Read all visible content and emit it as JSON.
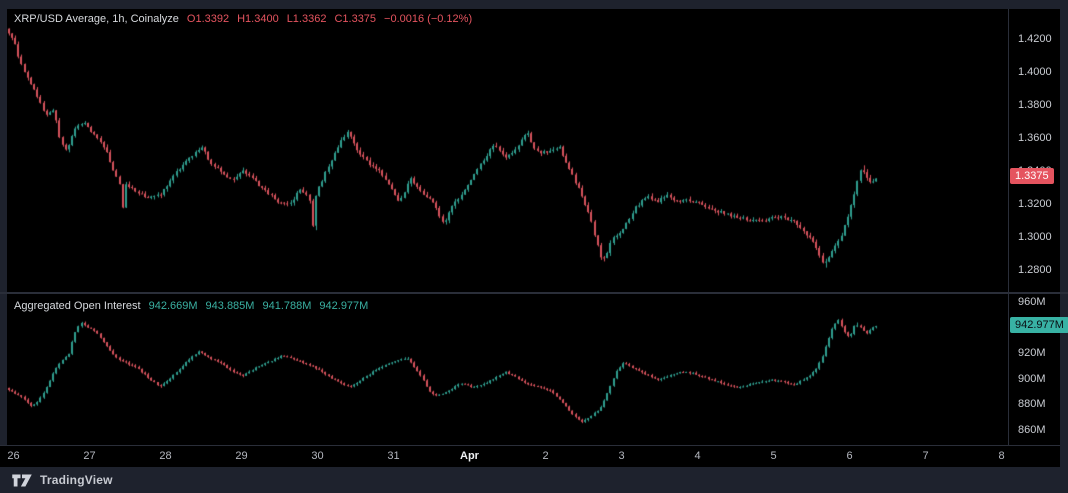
{
  "legend": {
    "title": "XRP/USD Average, 1h, Coinalyze",
    "ohlc": [
      "O1.3392",
      "H1.3400",
      "L1.3362",
      "C1.3375"
    ],
    "change": "−0.0016 (−0.12%)"
  },
  "oi_legend": {
    "title": "Aggregated Open Interest",
    "values": [
      "942.669M",
      "943.885M",
      "941.788M",
      "942.977M"
    ]
  },
  "footer": {
    "brand": "TradingView",
    "logo": "tradingview-logo"
  },
  "colors": {
    "up": "#2f9e8f",
    "down": "#d6525c",
    "chrome": "#1e222d",
    "border": "#2a2e39",
    "axis_text": "#c9ccd2",
    "time_text": "#b4b7bf",
    "badge_down": "#e5545f",
    "badge_up": "#38b2a4",
    "background": "#000000"
  },
  "chart_data": [
    {
      "type": "candlestick",
      "title": "XRP/USD Average, 1h, Coinalyze",
      "interval": "1h",
      "pane": "price",
      "ohlc_last": {
        "open": 1.3392,
        "high": 1.34,
        "low": 1.3362,
        "close": 1.3375,
        "change": -0.0016,
        "change_pct_text": "−0.12%"
      },
      "ylim": [
        1.272,
        1.434
      ],
      "x_range_days": [
        -0.08,
        11.4
      ],
      "grid": false,
      "legend_position": "top-left",
      "y_ticks": [
        {
          "text": "1.4200",
          "value": 1.42
        },
        {
          "text": "1.4000",
          "value": 1.4
        },
        {
          "text": "1.3800",
          "value": 1.38
        },
        {
          "text": "1.3600",
          "value": 1.36
        },
        {
          "text": "1.3400",
          "value": 1.34
        },
        {
          "text": "1.3200",
          "value": 1.32
        },
        {
          "text": "1.3000",
          "value": 1.3
        },
        {
          "text": "1.2800",
          "value": 1.28
        }
      ],
      "last_badge": {
        "text": "1.3375",
        "value": 1.3375,
        "direction": "down"
      },
      "x_ticks": [
        {
          "text": "26",
          "day": 0
        },
        {
          "text": "27",
          "day": 1
        },
        {
          "text": "28",
          "day": 2
        },
        {
          "text": "29",
          "day": 3
        },
        {
          "text": "30",
          "day": 4
        },
        {
          "text": "31",
          "day": 5
        },
        {
          "text": "Apr",
          "day": 6,
          "major": true
        },
        {
          "text": "2",
          "day": 7
        },
        {
          "text": "3",
          "day": 8
        },
        {
          "text": "4",
          "day": 9
        },
        {
          "text": "5",
          "day": 10
        },
        {
          "text": "6",
          "day": 11
        },
        {
          "text": "7",
          "day": 12
        },
        {
          "text": "8",
          "day": 13
        }
      ],
      "waypoints": [
        [
          -0.1,
          1.428
        ],
        [
          0.02,
          1.42
        ],
        [
          0.1,
          1.408
        ],
        [
          0.2,
          1.398
        ],
        [
          0.3,
          1.39
        ],
        [
          0.45,
          1.374
        ],
        [
          0.55,
          1.378
        ],
        [
          0.63,
          1.36
        ],
        [
          0.72,
          1.352
        ],
        [
          0.82,
          1.366
        ],
        [
          0.95,
          1.37
        ],
        [
          1.1,
          1.362
        ],
        [
          1.25,
          1.352
        ],
        [
          1.38,
          1.336
        ],
        [
          1.44,
          1.33
        ],
        [
          1.46,
          1.318
        ],
        [
          1.5,
          1.332
        ],
        [
          1.65,
          1.328
        ],
        [
          1.8,
          1.324
        ],
        [
          1.95,
          1.326
        ],
        [
          2.1,
          1.336
        ],
        [
          2.3,
          1.347
        ],
        [
          2.5,
          1.355
        ],
        [
          2.62,
          1.345
        ],
        [
          2.75,
          1.341
        ],
        [
          2.9,
          1.334
        ],
        [
          3.05,
          1.341
        ],
        [
          3.25,
          1.332
        ],
        [
          3.5,
          1.322
        ],
        [
          3.65,
          1.32
        ],
        [
          3.8,
          1.33
        ],
        [
          3.94,
          1.322
        ],
        [
          3.97,
          1.297
        ],
        [
          4.0,
          1.326
        ],
        [
          4.15,
          1.342
        ],
        [
          4.3,
          1.356
        ],
        [
          4.42,
          1.365
        ],
        [
          4.55,
          1.352
        ],
        [
          4.7,
          1.345
        ],
        [
          4.85,
          1.34
        ],
        [
          5.0,
          1.33
        ],
        [
          5.1,
          1.322
        ],
        [
          5.25,
          1.336
        ],
        [
          5.4,
          1.327
        ],
        [
          5.55,
          1.322
        ],
        [
          5.68,
          1.308
        ],
        [
          5.8,
          1.32
        ],
        [
          5.95,
          1.328
        ],
        [
          6.1,
          1.34
        ],
        [
          6.25,
          1.35
        ],
        [
          6.35,
          1.357
        ],
        [
          6.5,
          1.348
        ],
        [
          6.65,
          1.355
        ],
        [
          6.78,
          1.364
        ],
        [
          6.9,
          1.352
        ],
        [
          7.05,
          1.352
        ],
        [
          7.2,
          1.356
        ],
        [
          7.35,
          1.34
        ],
        [
          7.5,
          1.326
        ],
        [
          7.62,
          1.31
        ],
        [
          7.73,
          1.291
        ],
        [
          7.78,
          1.286
        ],
        [
          7.9,
          1.299
        ],
        [
          8.05,
          1.306
        ],
        [
          8.2,
          1.318
        ],
        [
          8.35,
          1.325
        ],
        [
          8.5,
          1.322
        ],
        [
          8.6,
          1.326
        ],
        [
          8.75,
          1.322
        ],
        [
          8.9,
          1.323
        ],
        [
          9.1,
          1.32
        ],
        [
          9.3,
          1.316
        ],
        [
          9.5,
          1.313
        ],
        [
          9.7,
          1.311
        ],
        [
          9.9,
          1.311
        ],
        [
          10.1,
          1.313
        ],
        [
          10.3,
          1.31
        ],
        [
          10.45,
          1.303
        ],
        [
          10.6,
          1.293
        ],
        [
          10.68,
          1.283
        ],
        [
          10.78,
          1.291
        ],
        [
          10.9,
          1.3
        ],
        [
          11.0,
          1.312
        ],
        [
          11.1,
          1.33
        ],
        [
          11.18,
          1.343
        ],
        [
          11.25,
          1.336
        ],
        [
          11.32,
          1.334
        ],
        [
          11.4,
          1.3375
        ]
      ]
    },
    {
      "type": "candlestick",
      "title": "Aggregated Open Interest",
      "pane": "oi",
      "unit": "M",
      "values_last": [
        942.669,
        943.885,
        941.788,
        942.977
      ],
      "ylim": [
        856,
        966
      ],
      "grid": false,
      "legend_position": "top-left",
      "y_ticks": [
        {
          "text": "960M",
          "value": 960
        },
        {
          "text": "940M",
          "value": 940
        },
        {
          "text": "920M",
          "value": 920
        },
        {
          "text": "900M",
          "value": 900
        },
        {
          "text": "880M",
          "value": 880
        },
        {
          "text": "860M",
          "value": 860
        }
      ],
      "last_badge": {
        "text": "942.977M",
        "value": 942.977,
        "direction": "up"
      },
      "waypoints": [
        [
          -0.1,
          894
        ],
        [
          0.05,
          889
        ],
        [
          0.15,
          885
        ],
        [
          0.25,
          879
        ],
        [
          0.35,
          883
        ],
        [
          0.45,
          893
        ],
        [
          0.55,
          906
        ],
        [
          0.65,
          915
        ],
        [
          0.75,
          920
        ],
        [
          0.82,
          936
        ],
        [
          0.9,
          945
        ],
        [
          1.0,
          941
        ],
        [
          1.1,
          938
        ],
        [
          1.2,
          930
        ],
        [
          1.35,
          918
        ],
        [
          1.5,
          913
        ],
        [
          1.65,
          909
        ],
        [
          1.8,
          901
        ],
        [
          1.95,
          894
        ],
        [
          2.1,
          902
        ],
        [
          2.3,
          914
        ],
        [
          2.45,
          922
        ],
        [
          2.6,
          917
        ],
        [
          2.75,
          913
        ],
        [
          2.9,
          906
        ],
        [
          3.05,
          903
        ],
        [
          3.2,
          909
        ],
        [
          3.4,
          914
        ],
        [
          3.55,
          919
        ],
        [
          3.7,
          916
        ],
        [
          3.85,
          913
        ],
        [
          4.0,
          909
        ],
        [
          4.15,
          903
        ],
        [
          4.3,
          898
        ],
        [
          4.45,
          894
        ],
        [
          4.6,
          900
        ],
        [
          4.75,
          906
        ],
        [
          4.9,
          911
        ],
        [
          5.05,
          915
        ],
        [
          5.2,
          917
        ],
        [
          5.3,
          909
        ],
        [
          5.42,
          899
        ],
        [
          5.5,
          890
        ],
        [
          5.6,
          887
        ],
        [
          5.75,
          891
        ],
        [
          5.9,
          897
        ],
        [
          6.05,
          894
        ],
        [
          6.2,
          896
        ],
        [
          6.35,
          901
        ],
        [
          6.5,
          906
        ],
        [
          6.65,
          901
        ],
        [
          6.8,
          896
        ],
        [
          6.95,
          894
        ],
        [
          7.1,
          891
        ],
        [
          7.25,
          882
        ],
        [
          7.4,
          871
        ],
        [
          7.5,
          867
        ],
        [
          7.6,
          870
        ],
        [
          7.75,
          878
        ],
        [
          7.85,
          892
        ],
        [
          7.95,
          906
        ],
        [
          8.05,
          913
        ],
        [
          8.2,
          908
        ],
        [
          8.35,
          904
        ],
        [
          8.5,
          900
        ],
        [
          8.65,
          903
        ],
        [
          8.8,
          906
        ],
        [
          8.95,
          905
        ],
        [
          9.1,
          902
        ],
        [
          9.25,
          899
        ],
        [
          9.4,
          896
        ],
        [
          9.55,
          894
        ],
        [
          9.7,
          896
        ],
        [
          9.85,
          898
        ],
        [
          10.0,
          900
        ],
        [
          10.15,
          898
        ],
        [
          10.3,
          896
        ],
        [
          10.45,
          901
        ],
        [
          10.55,
          906
        ],
        [
          10.65,
          915
        ],
        [
          10.72,
          928
        ],
        [
          10.8,
          941
        ],
        [
          10.88,
          947
        ],
        [
          10.95,
          938
        ],
        [
          11.02,
          933
        ],
        [
          11.1,
          944
        ],
        [
          11.18,
          940
        ],
        [
          11.25,
          936
        ],
        [
          11.32,
          941
        ],
        [
          11.4,
          943
        ]
      ]
    }
  ]
}
